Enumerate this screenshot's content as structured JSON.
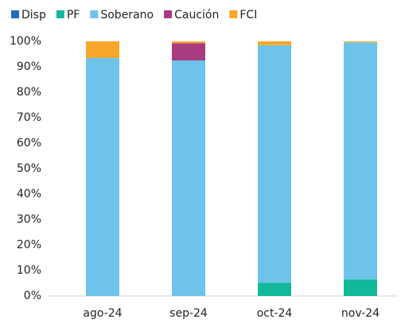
{
  "chart_data": {
    "type": "stacked_bar",
    "categories": [
      "ago-24",
      "sep-24",
      "oct-24",
      "nov-24"
    ],
    "series": [
      {
        "name": "Disp",
        "color": "#1f6cc1",
        "values": [
          0,
          0,
          0,
          0
        ]
      },
      {
        "name": "PF",
        "color": "#12b89a",
        "values": [
          0,
          0,
          5.2,
          6.5
        ]
      },
      {
        "name": "Soberano",
        "color": "#6dc3ea",
        "values": [
          93.5,
          92.5,
          93.3,
          93.1
        ]
      },
      {
        "name": "Caución",
        "color": "#a83c80",
        "values": [
          0,
          6.8,
          0,
          0
        ]
      },
      {
        "name": "FCI",
        "color": "#f7a72a",
        "values": [
          6.5,
          0.7,
          1.5,
          0.4
        ]
      }
    ],
    "ylim": [
      0,
      100
    ],
    "yticks": [
      {
        "value": 0,
        "label": "0%"
      },
      {
        "value": 10,
        "label": "10%"
      },
      {
        "value": 20,
        "label": "20%"
      },
      {
        "value": 30,
        "label": "30%"
      },
      {
        "value": 40,
        "label": "40%"
      },
      {
        "value": 50,
        "label": "50%"
      },
      {
        "value": 60,
        "label": "60%"
      },
      {
        "value": 70,
        "label": "70%"
      },
      {
        "value": 80,
        "label": "80%"
      },
      {
        "value": 90,
        "label": "90%"
      },
      {
        "value": 100,
        "label": "100%"
      }
    ],
    "grid": false,
    "legend": "top"
  }
}
